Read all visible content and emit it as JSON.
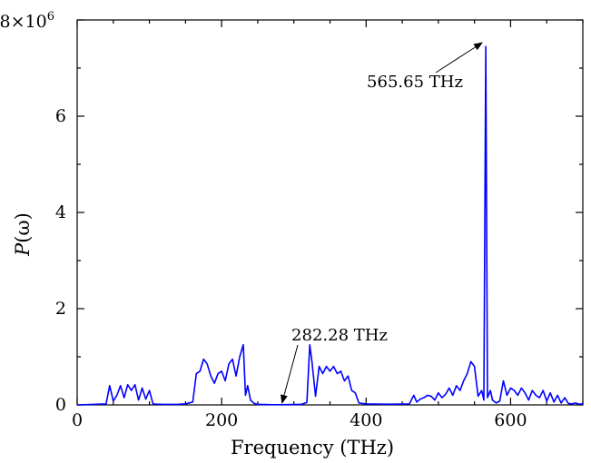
{
  "chart_data": {
    "type": "line",
    "title": "",
    "xlabel": "Frequency (THz)",
    "ylabel_italic": "P",
    "ylabel_rest": "(ω)",
    "xlim": [
      0,
      700
    ],
    "ylim": [
      0,
      8000000
    ],
    "x_ticks": [
      0,
      200,
      400,
      600
    ],
    "x_tick_labels": [
      "0",
      "200",
      "400",
      "600"
    ],
    "y_ticks": [
      0,
      2000000,
      4000000,
      6000000
    ],
    "y_tick_labels": [
      "0",
      "2",
      "4",
      "6"
    ],
    "y_top_label_base": "8×10",
    "y_top_label_exp": "6",
    "grid": false,
    "series": [
      {
        "color": "#0000ff",
        "x": [
          0,
          40,
          45,
          50,
          55,
          60,
          65,
          70,
          75,
          80,
          85,
          90,
          95,
          100,
          105,
          110,
          115,
          120,
          130,
          140,
          150,
          160,
          165,
          170,
          175,
          180,
          185,
          190,
          195,
          200,
          205,
          210,
          215,
          220,
          225,
          230,
          233,
          236,
          240,
          245,
          250,
          260,
          270,
          280,
          282.28,
          290,
          300,
          310,
          318,
          322,
          325,
          330,
          335,
          340,
          345,
          350,
          355,
          360,
          365,
          370,
          375,
          380,
          385,
          390,
          400,
          420,
          440,
          460,
          466,
          470,
          475,
          480,
          485,
          490,
          495,
          500,
          505,
          510,
          515,
          520,
          525,
          530,
          535,
          540,
          545,
          550,
          555,
          560,
          563,
          565.65,
          568,
          572,
          575,
          580,
          585,
          590,
          595,
          600,
          605,
          610,
          615,
          620,
          625,
          630,
          635,
          640,
          645,
          650,
          655,
          660,
          665,
          670,
          675,
          680,
          685,
          690,
          695,
          700
        ],
        "y": [
          0,
          20000,
          400000,
          80000,
          200000,
          400000,
          150000,
          420000,
          300000,
          420000,
          100000,
          350000,
          120000,
          300000,
          20000,
          15000,
          12000,
          10000,
          10000,
          12000,
          20000,
          60000,
          650000,
          700000,
          950000,
          850000,
          600000,
          450000,
          650000,
          700000,
          500000,
          850000,
          950000,
          600000,
          1000000,
          1250000,
          200000,
          400000,
          100000,
          30000,
          10000,
          8000,
          5000,
          5000,
          5000,
          6000,
          8000,
          10000,
          50000,
          1250000,
          900000,
          180000,
          800000,
          650000,
          800000,
          700000,
          800000,
          650000,
          700000,
          500000,
          600000,
          300000,
          250000,
          40000,
          20000,
          15000,
          15000,
          20000,
          200000,
          60000,
          120000,
          150000,
          200000,
          180000,
          100000,
          250000,
          150000,
          220000,
          350000,
          200000,
          400000,
          300000,
          500000,
          650000,
          900000,
          800000,
          180000,
          300000,
          100000,
          7450000,
          150000,
          300000,
          100000,
          40000,
          80000,
          500000,
          200000,
          350000,
          300000,
          200000,
          350000,
          250000,
          100000,
          300000,
          200000,
          150000,
          300000,
          80000,
          250000,
          60000,
          200000,
          40000,
          150000,
          30000,
          20000,
          40000,
          15000,
          20000
        ]
      }
    ],
    "annotations": [
      {
        "text": "565.65 THz",
        "x": 565.65
      },
      {
        "text": "282.28 THz",
        "x": 282.28
      }
    ]
  }
}
